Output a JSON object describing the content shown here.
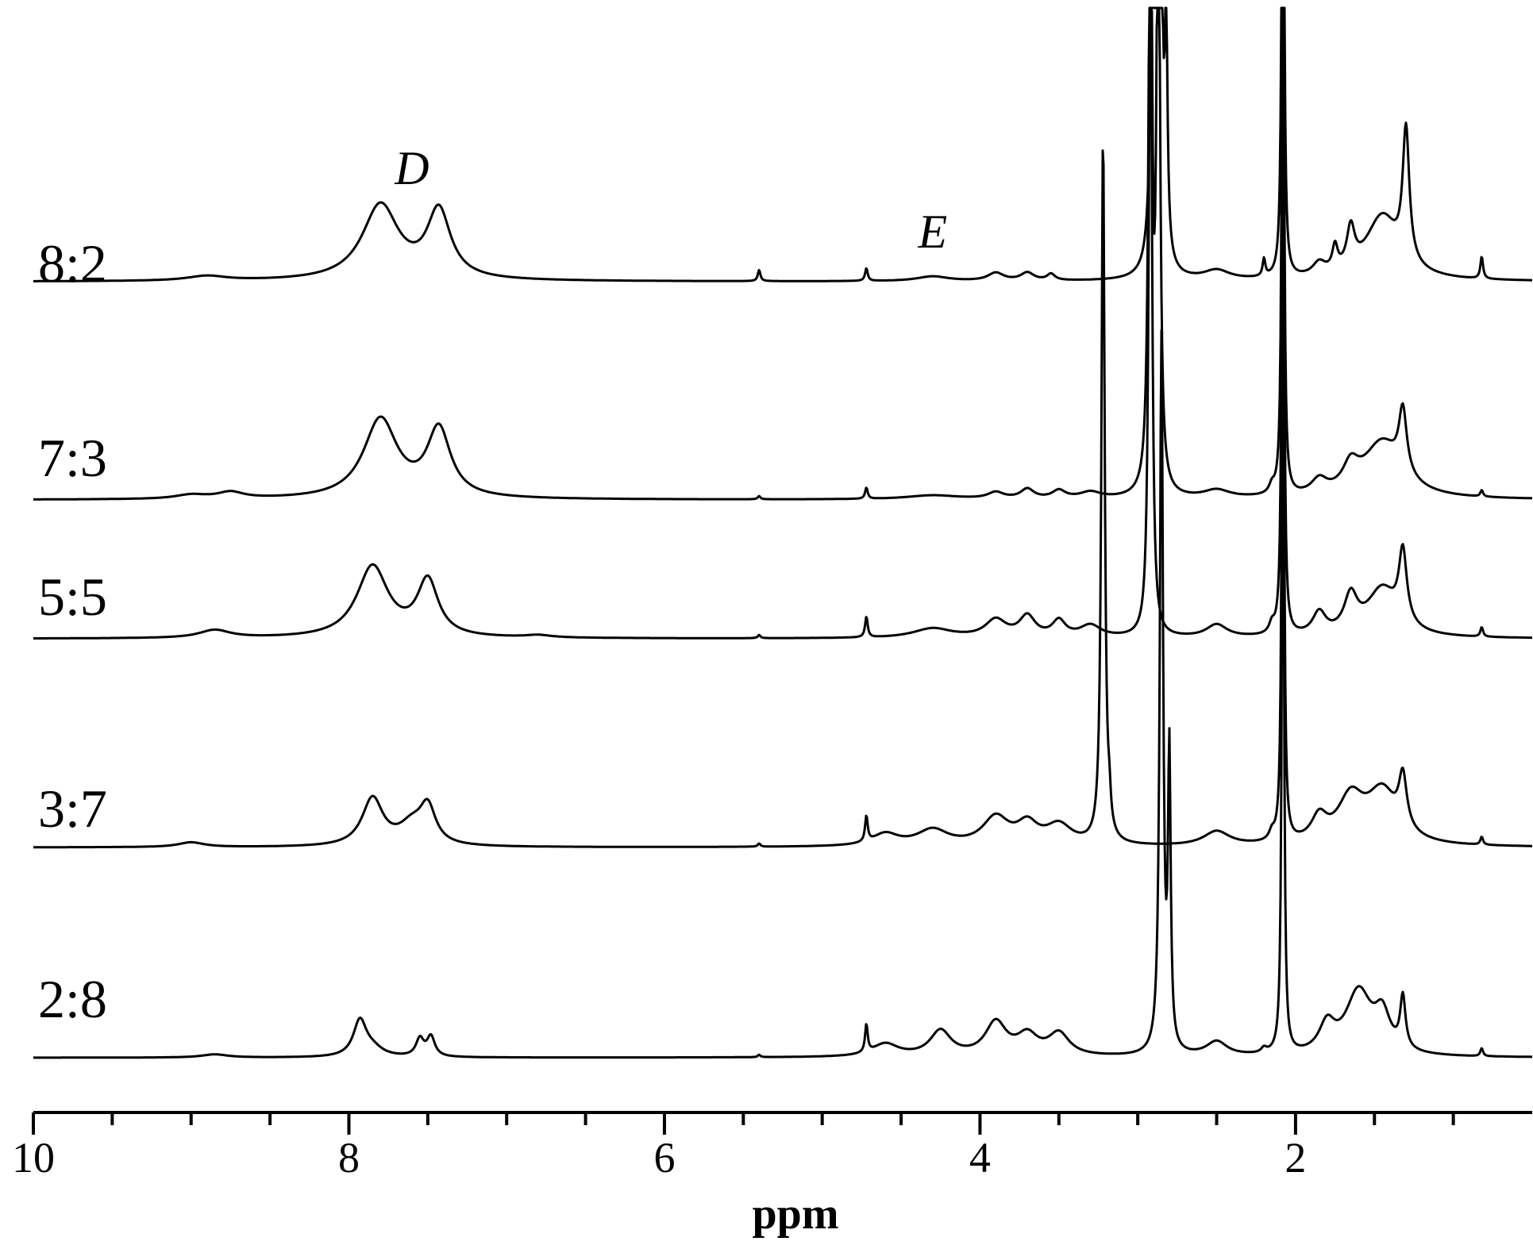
{
  "chart_data": {
    "type": "line",
    "title": "",
    "xlabel": "ppm",
    "ylabel": "",
    "xlim": [
      10,
      0.5
    ],
    "x_reversed": true,
    "x_ticks": [
      "10",
      "8",
      "6",
      "4",
      "2"
    ],
    "x_tick_values": [
      10,
      8,
      6,
      4,
      2
    ],
    "grid": false,
    "legend": "none",
    "annotations": [
      {
        "text": "D",
        "x": 7.6
      },
      {
        "text": "E",
        "x": 4.3
      }
    ],
    "series": [
      {
        "name": "8:2",
        "peaks": [
          {
            "x": 8.9,
            "h": 6,
            "w": 0.15
          },
          {
            "x": 7.8,
            "h": 95,
            "w": 0.14
          },
          {
            "x": 7.43,
            "h": 85,
            "w": 0.09
          },
          {
            "x": 5.4,
            "h": 14,
            "w": 0.01
          },
          {
            "x": 4.72,
            "h": 16,
            "w": 0.01
          },
          {
            "x": 4.3,
            "h": 6,
            "w": 0.12
          },
          {
            "x": 3.9,
            "h": 10,
            "w": 0.06
          },
          {
            "x": 3.7,
            "h": 10,
            "w": 0.05
          },
          {
            "x": 3.55,
            "h": 8,
            "w": 0.03
          },
          {
            "x": 2.9,
            "h": 900,
            "w": 0.012
          },
          {
            "x": 2.86,
            "h": 880,
            "w": 0.012
          },
          {
            "x": 2.82,
            "h": 280,
            "w": 0.01
          },
          {
            "x": 2.5,
            "h": 12,
            "w": 0.1
          },
          {
            "x": 2.2,
            "h": 22,
            "w": 0.01
          },
          {
            "x": 2.08,
            "h": 900,
            "w": 0.008
          },
          {
            "x": 1.85,
            "h": 16,
            "w": 0.05
          },
          {
            "x": 1.75,
            "h": 30,
            "w": 0.02
          },
          {
            "x": 1.65,
            "h": 50,
            "w": 0.03
          },
          {
            "x": 1.45,
            "h": 80,
            "w": 0.13
          },
          {
            "x": 1.3,
            "h": 165,
            "w": 0.025
          },
          {
            "x": 0.82,
            "h": 28,
            "w": 0.01
          }
        ]
      },
      {
        "name": "7:3",
        "peaks": [
          {
            "x": 9.0,
            "h": 5,
            "w": 0.12
          },
          {
            "x": 8.75,
            "h": 8,
            "w": 0.1
          },
          {
            "x": 7.8,
            "h": 100,
            "w": 0.13
          },
          {
            "x": 7.43,
            "h": 85,
            "w": 0.09
          },
          {
            "x": 5.4,
            "h": 4,
            "w": 0.01
          },
          {
            "x": 4.72,
            "h": 14,
            "w": 0.01
          },
          {
            "x": 4.3,
            "h": 5,
            "w": 0.2
          },
          {
            "x": 3.9,
            "h": 8,
            "w": 0.06
          },
          {
            "x": 3.7,
            "h": 12,
            "w": 0.05
          },
          {
            "x": 3.5,
            "h": 10,
            "w": 0.05
          },
          {
            "x": 3.3,
            "h": 8,
            "w": 0.08
          },
          {
            "x": 2.92,
            "h": 900,
            "w": 0.012
          },
          {
            "x": 2.87,
            "h": 880,
            "w": 0.012
          },
          {
            "x": 2.5,
            "h": 10,
            "w": 0.1
          },
          {
            "x": 2.15,
            "h": 10,
            "w": 0.02
          },
          {
            "x": 2.08,
            "h": 900,
            "w": 0.008
          },
          {
            "x": 1.85,
            "h": 18,
            "w": 0.06
          },
          {
            "x": 1.65,
            "h": 30,
            "w": 0.06
          },
          {
            "x": 1.45,
            "h": 70,
            "w": 0.15
          },
          {
            "x": 1.32,
            "h": 80,
            "w": 0.03
          },
          {
            "x": 0.82,
            "h": 8,
            "w": 0.01
          }
        ]
      },
      {
        "name": "5:5",
        "peaks": [
          {
            "x": 8.85,
            "h": 10,
            "w": 0.12
          },
          {
            "x": 7.85,
            "h": 90,
            "w": 0.12
          },
          {
            "x": 7.5,
            "h": 70,
            "w": 0.08
          },
          {
            "x": 6.8,
            "h": 3,
            "w": 0.1
          },
          {
            "x": 5.4,
            "h": 4,
            "w": 0.01
          },
          {
            "x": 4.72,
            "h": 26,
            "w": 0.01
          },
          {
            "x": 4.3,
            "h": 12,
            "w": 0.15
          },
          {
            "x": 3.9,
            "h": 22,
            "w": 0.08
          },
          {
            "x": 3.7,
            "h": 26,
            "w": 0.06
          },
          {
            "x": 3.5,
            "h": 20,
            "w": 0.05
          },
          {
            "x": 3.3,
            "h": 15,
            "w": 0.08
          },
          {
            "x": 2.92,
            "h": 900,
            "w": 0.012
          },
          {
            "x": 2.5,
            "h": 16,
            "w": 0.08
          },
          {
            "x": 2.15,
            "h": 12,
            "w": 0.02
          },
          {
            "x": 2.08,
            "h": 900,
            "w": 0.008
          },
          {
            "x": 1.85,
            "h": 28,
            "w": 0.05
          },
          {
            "x": 1.65,
            "h": 45,
            "w": 0.05
          },
          {
            "x": 1.45,
            "h": 60,
            "w": 0.12
          },
          {
            "x": 1.32,
            "h": 90,
            "w": 0.03
          },
          {
            "x": 0.82,
            "h": 12,
            "w": 0.01
          }
        ]
      },
      {
        "name": "3:7",
        "peaks": [
          {
            "x": 9.0,
            "h": 6,
            "w": 0.1
          },
          {
            "x": 7.85,
            "h": 60,
            "w": 0.08
          },
          {
            "x": 7.6,
            "h": 25,
            "w": 0.1
          },
          {
            "x": 7.5,
            "h": 45,
            "w": 0.06
          },
          {
            "x": 5.4,
            "h": 4,
            "w": 0.01
          },
          {
            "x": 4.72,
            "h": 32,
            "w": 0.01
          },
          {
            "x": 4.6,
            "h": 15,
            "w": 0.1
          },
          {
            "x": 4.3,
            "h": 20,
            "w": 0.12
          },
          {
            "x": 3.9,
            "h": 35,
            "w": 0.1
          },
          {
            "x": 3.7,
            "h": 25,
            "w": 0.08
          },
          {
            "x": 3.5,
            "h": 25,
            "w": 0.1
          },
          {
            "x": 3.22,
            "h": 900,
            "w": 0.012
          },
          {
            "x": 3.18,
            "h": 30,
            "w": 0.01
          },
          {
            "x": 2.5,
            "h": 18,
            "w": 0.1
          },
          {
            "x": 2.15,
            "h": 10,
            "w": 0.02
          },
          {
            "x": 2.08,
            "h": 900,
            "w": 0.008
          },
          {
            "x": 1.85,
            "h": 30,
            "w": 0.06
          },
          {
            "x": 1.65,
            "h": 55,
            "w": 0.1
          },
          {
            "x": 1.45,
            "h": 65,
            "w": 0.12
          },
          {
            "x": 1.32,
            "h": 65,
            "w": 0.03
          },
          {
            "x": 0.82,
            "h": 10,
            "w": 0.01
          }
        ]
      },
      {
        "name": "2:8",
        "peaks": [
          {
            "x": 8.85,
            "h": 4,
            "w": 0.1
          },
          {
            "x": 7.93,
            "h": 45,
            "w": 0.05
          },
          {
            "x": 7.85,
            "h": 10,
            "w": 0.08
          },
          {
            "x": 7.55,
            "h": 22,
            "w": 0.03
          },
          {
            "x": 7.48,
            "h": 25,
            "w": 0.03
          },
          {
            "x": 5.4,
            "h": 3,
            "w": 0.01
          },
          {
            "x": 4.72,
            "h": 35,
            "w": 0.01
          },
          {
            "x": 4.6,
            "h": 16,
            "w": 0.1
          },
          {
            "x": 4.25,
            "h": 32,
            "w": 0.08
          },
          {
            "x": 3.9,
            "h": 42,
            "w": 0.08
          },
          {
            "x": 3.7,
            "h": 25,
            "w": 0.08
          },
          {
            "x": 3.5,
            "h": 28,
            "w": 0.08
          },
          {
            "x": 2.85,
            "h": 900,
            "w": 0.012
          },
          {
            "x": 2.8,
            "h": 365,
            "w": 0.01
          },
          {
            "x": 2.5,
            "h": 18,
            "w": 0.08
          },
          {
            "x": 2.2,
            "h": 6,
            "w": 0.02
          },
          {
            "x": 2.08,
            "h": 900,
            "w": 0.008
          },
          {
            "x": 1.8,
            "h": 35,
            "w": 0.06
          },
          {
            "x": 1.6,
            "h": 80,
            "w": 0.1
          },
          {
            "x": 1.45,
            "h": 45,
            "w": 0.06
          },
          {
            "x": 1.32,
            "h": 65,
            "w": 0.02
          },
          {
            "x": 0.82,
            "h": 10,
            "w": 0.01
          }
        ]
      }
    ]
  }
}
